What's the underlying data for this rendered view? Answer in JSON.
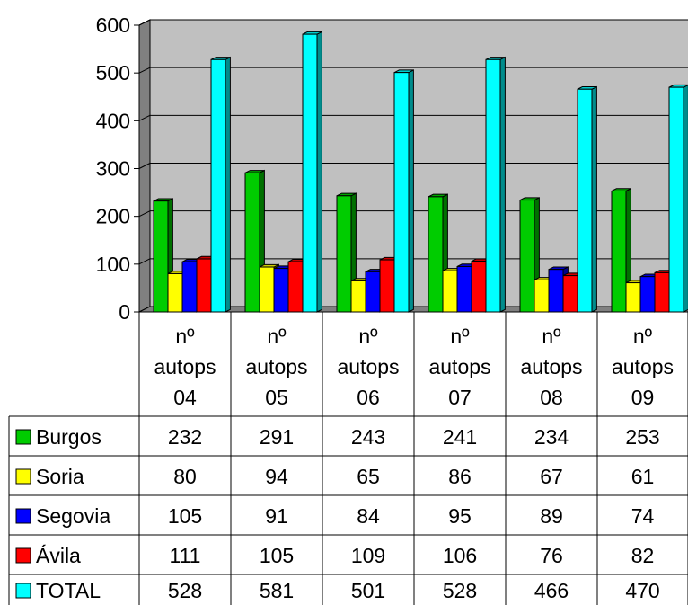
{
  "chart_data": {
    "type": "bar",
    "categories": [
      [
        "nº",
        "autops",
        "04"
      ],
      [
        "nº",
        "autops",
        "05"
      ],
      [
        "nº",
        "autops",
        "06"
      ],
      [
        "nº",
        "autops",
        "07"
      ],
      [
        "nº",
        "autops",
        "08"
      ],
      [
        "nº",
        "autops",
        "09"
      ]
    ],
    "series": [
      {
        "name": "Burgos",
        "color": "#00cc00",
        "values": [
          232,
          291,
          243,
          241,
          234,
          253
        ]
      },
      {
        "name": "Soria",
        "color": "#ffff00",
        "values": [
          80,
          94,
          65,
          86,
          67,
          61
        ]
      },
      {
        "name": "Segovia",
        "color": "#0000ff",
        "values": [
          105,
          91,
          84,
          95,
          89,
          74
        ]
      },
      {
        "name": "Ávila",
        "color": "#ff0000",
        "values": [
          111,
          105,
          109,
          106,
          76,
          82
        ]
      },
      {
        "name": "TOTAL",
        "color": "#00ffff",
        "values": [
          528,
          581,
          501,
          528,
          466,
          470
        ]
      }
    ],
    "ylim": [
      0,
      600
    ],
    "yticks": [
      0,
      100,
      200,
      300,
      400,
      500,
      600
    ],
    "grid": true,
    "three_d": true,
    "plot_background": "#c0c0c0",
    "legend": "data-table-below"
  }
}
